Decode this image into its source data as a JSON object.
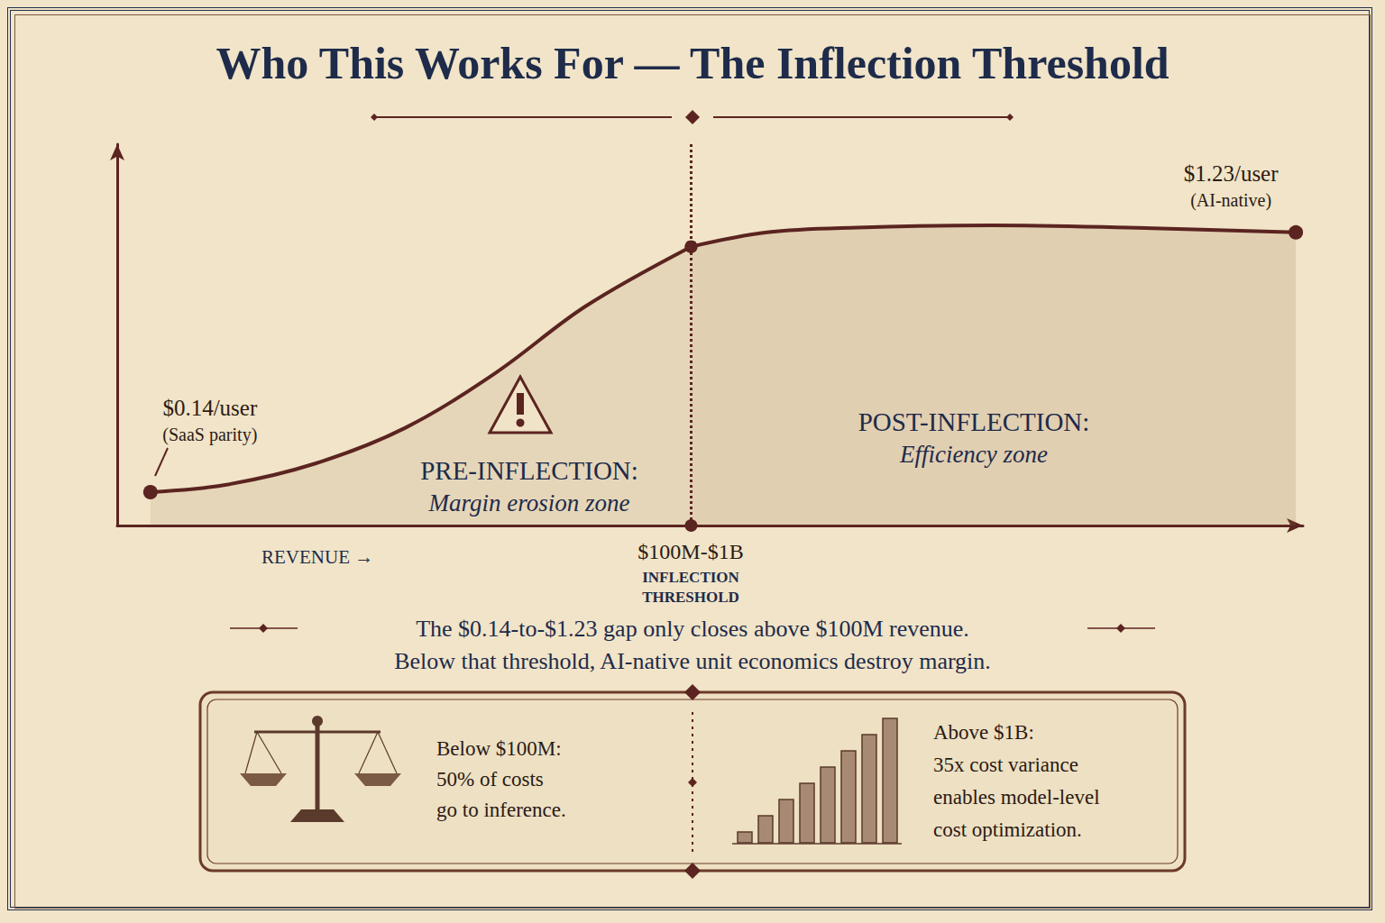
{
  "chart_data": {
    "type": "line",
    "title": "Who This Works For — The Inflection Threshold",
    "x": [
      2.8,
      9.1,
      16.7,
      24.3,
      31.9,
      39.5,
      48.4,
      54.8,
      62.4,
      73.8,
      85.2,
      99.4
    ],
    "values": [
      0.14,
      0.17,
      0.26,
      0.41,
      0.64,
      0.92,
      1.17,
      1.23,
      1.25,
      1.26,
      1.25,
      1.23
    ],
    "value_labels": [
      "$0.14/user",
      null,
      null,
      null,
      null,
      null,
      null,
      null,
      null,
      null,
      null,
      "$1.23/user"
    ],
    "value_notes": [
      "(SaaS parity)",
      null,
      null,
      null,
      null,
      null,
      null,
      null,
      null,
      null,
      null,
      "(AI-native)"
    ],
    "color": "#5b2420",
    "xlabel": "REVENUE →",
    "xlim": [
      0,
      100
    ],
    "ylim": [
      0,
      1.6
    ],
    "tick_labels": false,
    "grid": false,
    "threshold": {
      "x": 48.4,
      "label": "$100M-$1B",
      "sublabel": [
        "INFLECTION",
        "THRESHOLD"
      ]
    },
    "zones": [
      {
        "name": "PRE-INFLECTION:",
        "description": "Margin erosion zone"
      },
      {
        "name": "POST-INFLECTION:",
        "description": "Efficiency zone"
      }
    ],
    "caption": [
      "The $0.14-to-$1.23 gap only closes above $100M revenue.",
      "Below that threshold, AI-native unit economics destroy margin."
    ],
    "notes": [
      {
        "lines": [
          "Below $100M:",
          "50% of costs",
          "go to inference."
        ]
      },
      {
        "lines": [
          "Above $1B:",
          "35x cost variance",
          "enables model-level",
          "cost optimization."
        ]
      }
    ]
  }
}
